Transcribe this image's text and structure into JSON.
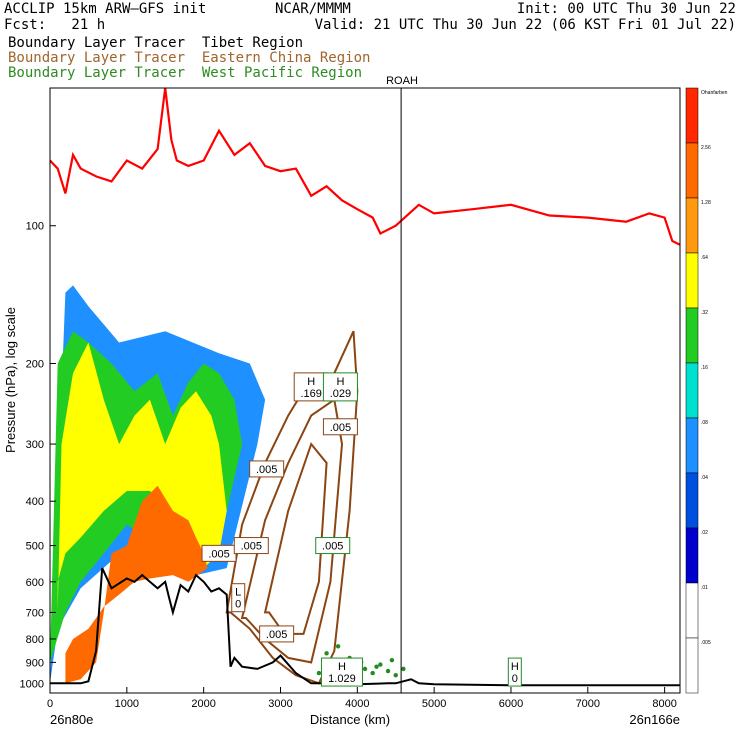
{
  "header": {
    "title_left": "ACCLIP 15km ARW–GFS init",
    "fcst": "Fcst:   21 h",
    "center": "NCAR/MMMM",
    "init": "Init: 00 UTC Thu 30 Jun 22",
    "valid": "Valid: 21 UTC Thu 30 Jun 22 (06 KST Fri 01 Jul 22)"
  },
  "tracers": [
    {
      "label": "Boundary Layer Tracer  Tibet Region",
      "color": "#000000"
    },
    {
      "label": "Boundary Layer Tracer  Eastern China Region",
      "color": "#a0642d"
    },
    {
      "label": "Boundary Layer Tracer  West Pacific Region",
      "color": "#2e8b22"
    }
  ],
  "colors": {
    "tropopause": "#ff0000",
    "terrain": "#000000",
    "east_china": "#8b4513",
    "west_pacific": "#228b22"
  },
  "chart_data": {
    "type": "heatmap",
    "xlabel": "Distance (km)",
    "ylabel": "Pressure (hPa), log scale",
    "xlim": [
      0,
      8200
    ],
    "ylim": [
      1050,
      50
    ],
    "log_y": true,
    "x_ticks": [
      "0",
      "1000",
      "2000",
      "3000",
      "4000",
      "5000",
      "6000",
      "7000",
      "8000"
    ],
    "y_ticks": [
      "100",
      "200",
      "300",
      "400",
      "500",
      "600",
      "700",
      "800",
      "900",
      "1000"
    ],
    "start_label": "26n80e",
    "end_label": "26n166e",
    "marker": {
      "label": "ROAH",
      "x": 4570
    },
    "colorbar": {
      "levels": [
        "Ohanfarben",
        "2.56",
        "1.28",
        ".64",
        ".32",
        ".16",
        ".08",
        ".04",
        ".02",
        ".01",
        ".005"
      ],
      "colors": [
        "#ff2800",
        "#ff6a00",
        "#ff9a10",
        "#ffff00",
        "#22cc22",
        "#00e0d0",
        "#1e90ff",
        "#0050e0",
        "#0000cd",
        "#ffffff",
        "#ffffff"
      ]
    },
    "tropopause": {
      "name": "",
      "x": [
        0,
        100,
        200,
        300,
        400,
        600,
        800,
        1000,
        1200,
        1400,
        1500,
        1580,
        1650,
        1800,
        2000,
        2200,
        2400,
        2600,
        2800,
        3000,
        3200,
        3400,
        3600,
        3800,
        4000,
        4200,
        4300,
        4500,
        4800,
        5000,
        5500,
        6000,
        6500,
        7000,
        7500,
        7800,
        8000,
        8100,
        8200
      ],
      "p": [
        72,
        75,
        85,
        70,
        75,
        78,
        80,
        72,
        75,
        68,
        50,
        65,
        72,
        74,
        72,
        62,
        70,
        66,
        74,
        76,
        75,
        86,
        82,
        88,
        92,
        96,
        104,
        100,
        90,
        94,
        92,
        90,
        95,
        96,
        98,
        94,
        96,
        108,
        110
      ]
    },
    "terrain": {
      "name": "",
      "x": [
        0,
        400,
        500,
        600,
        680,
        800,
        1000,
        1100,
        1200,
        1300,
        1400,
        1500,
        1550,
        1600,
        1700,
        1800,
        1900,
        2000,
        2100,
        2200,
        2300,
        2350,
        2400,
        2500,
        2700,
        2900,
        3000,
        3200,
        3400,
        3600,
        3800,
        4000,
        4400,
        4500,
        4700,
        4800,
        5000,
        6000,
        7000,
        8000,
        8200
      ],
      "p": [
        1000,
        1000,
        990,
        850,
        560,
        620,
        590,
        600,
        580,
        600,
        620,
        600,
        650,
        700,
        610,
        630,
        580,
        600,
        630,
        620,
        640,
        920,
        880,
        920,
        930,
        900,
        870,
        950,
        1000,
        1000,
        1010,
        1005,
        1000,
        1000,
        980,
        1000,
        1005,
        1010,
        1010,
        1010,
        1010
      ]
    },
    "series": [
      {
        "name": "",
        "color": "#ff6a00",
        "x": [
          200,
          400,
          600,
          700,
          800,
          1000,
          1200,
          1400,
          1600,
          1800,
          1900,
          2000,
          2050,
          1800,
          1600,
          1300,
          1100,
          900,
          700,
          600,
          500,
          300,
          200
        ],
        "p": [
          1000,
          980,
          900,
          700,
          520,
          500,
          400,
          370,
          420,
          440,
          480,
          520,
          560,
          600,
          580,
          590,
          600,
          640,
          680,
          720,
          760,
          800,
          860
        ]
      },
      {
        "name": "",
        "color": "#ffff00",
        "x": [
          100,
          150,
          300,
          500,
          700,
          900,
          1100,
          1300,
          1500,
          1700,
          1900,
          2100,
          2200,
          2300,
          2200,
          2000,
          1800,
          1600,
          1300,
          1000,
          700,
          400,
          200,
          100
        ],
        "p": [
          700,
          300,
          210,
          180,
          240,
          300,
          260,
          240,
          300,
          250,
          230,
          260,
          300,
          420,
          520,
          560,
          500,
          420,
          380,
          380,
          420,
          480,
          520,
          600
        ]
      },
      {
        "name": "",
        "color": "#22cc22",
        "x": [
          0,
          100,
          300,
          500,
          800,
          1100,
          1400,
          1600,
          1800,
          2000,
          2200,
          2400,
          2500,
          2300,
          2100,
          1800,
          1400,
          1000,
          700,
          400,
          200,
          0
        ],
        "p": [
          900,
          200,
          170,
          180,
          200,
          230,
          210,
          260,
          220,
          200,
          210,
          240,
          300,
          420,
          520,
          560,
          500,
          450,
          520,
          600,
          700,
          900
        ]
      },
      {
        "name": "",
        "color": "#1e90ff",
        "x": [
          0,
          200,
          300,
          500,
          900,
          1500,
          2200,
          2600,
          2800,
          2700,
          2300,
          1900,
          1300,
          800,
          400,
          100,
          0
        ],
        "p": [
          1000,
          140,
          135,
          150,
          180,
          170,
          190,
          200,
          240,
          300,
          560,
          580,
          560,
          540,
          620,
          760,
          1000
        ]
      }
    ],
    "east_china_contours": [
      {
        "x": [
          2300,
          2500,
          2800,
          3100,
          3400,
          3700,
          3950,
          4000,
          3900,
          3700,
          3500,
          3200,
          2900,
          2600,
          2350
        ],
        "p": [
          700,
          450,
          330,
          260,
          215,
          210,
          170,
          230,
          420,
          850,
          1000,
          960,
          880,
          760,
          700
        ]
      },
      {
        "x": [
          2500,
          2800,
          3100,
          3400,
          3700,
          3800,
          3650,
          3400,
          3100,
          2800,
          2550
        ],
        "p": [
          720,
          440,
          330,
          260,
          240,
          300,
          600,
          900,
          880,
          800,
          720
        ]
      },
      {
        "x": [
          2800,
          3100,
          3400,
          3600,
          3500,
          3300,
          3050,
          2850
        ],
        "p": [
          700,
          420,
          300,
          330,
          600,
          780,
          780,
          700
        ]
      }
    ],
    "west_pacific_scatter": {
      "x": [
        3500,
        3600,
        3700,
        3800,
        3900,
        4000,
        4100,
        4200,
        4300,
        4400,
        4500,
        4600,
        3600,
        3750,
        3900,
        4050,
        4250,
        4450
      ],
      "p": [
        950,
        930,
        900,
        940,
        920,
        960,
        930,
        950,
        910,
        940,
        960,
        930,
        860,
        830,
        880,
        900,
        920,
        890
      ]
    },
    "annotations": [
      {
        "label": "H\n.169",
        "x": 3400,
        "p": 225,
        "color": "#8b4513"
      },
      {
        "label": "H\n.029",
        "x": 3780,
        "p": 225,
        "color": "#228b22"
      },
      {
        "label": ".005",
        "x": 3780,
        "p": 275,
        "color": "#8b4513"
      },
      {
        "label": ".005",
        "x": 2820,
        "p": 340,
        "color": "#8b4513"
      },
      {
        "label": ".005",
        "x": 2200,
        "p": 520,
        "color": "#8b4513"
      },
      {
        "label": ".005",
        "x": 2620,
        "p": 500,
        "color": "#8b4513"
      },
      {
        "label": ".005",
        "x": 3680,
        "p": 500,
        "color": "#228b22"
      },
      {
        "label": "L\n0",
        "x": 2450,
        "p": 650,
        "color": "#8b4513"
      },
      {
        "label": ".005",
        "x": 2950,
        "p": 780,
        "color": "#8b4513"
      },
      {
        "label": "H\n1.029",
        "x": 3800,
        "p": 945,
        "color": "#228b22"
      },
      {
        "label": "H\n0",
        "x": 6050,
        "p": 945,
        "color": "#228b22"
      }
    ]
  }
}
